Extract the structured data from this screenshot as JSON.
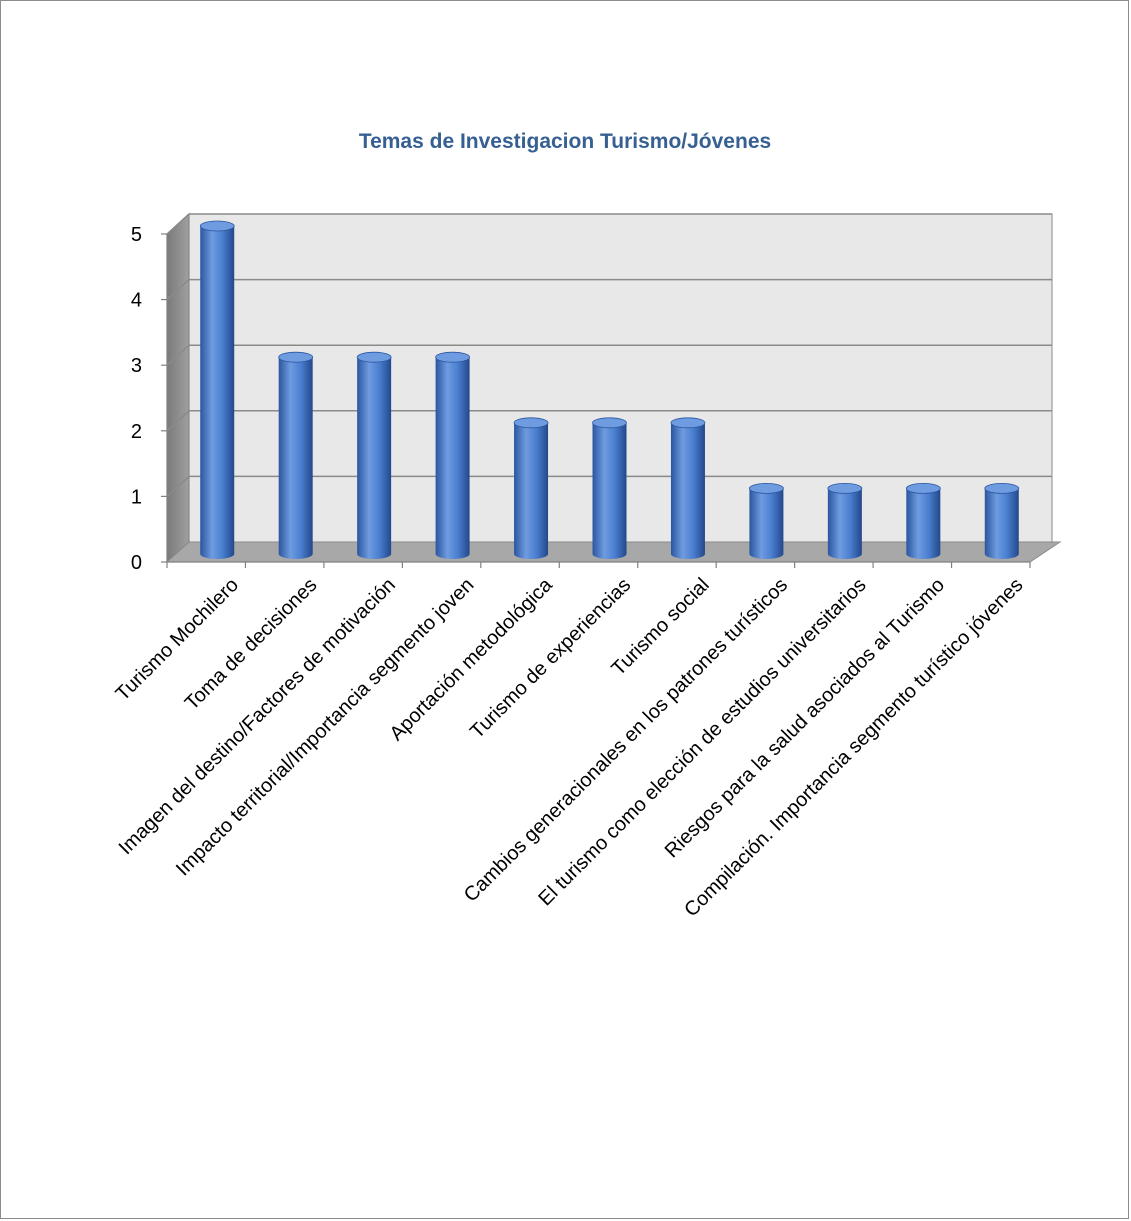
{
  "colors": {
    "title": "#376092",
    "bar_light": "#6f9be0",
    "bar_mid": "#3f74c8",
    "bar_dark": "#2a56a0",
    "wall": "#e8e8e8",
    "side_wall": "#909090",
    "floor": "#a8a8a8",
    "grid": "#8a8a8a"
  },
  "chart_data": {
    "type": "bar",
    "title": "Temas de Investigacion Turismo/Jóvenes",
    "xlabel": "",
    "ylabel": "",
    "ylim": [
      0,
      5
    ],
    "yticks": [
      0,
      1,
      2,
      3,
      4,
      5
    ],
    "grid": true,
    "legend": "none",
    "categories": [
      "Turismo Mochilero",
      "Toma de decisiones",
      "Imagen del destino/Factores de motivación",
      "Impacto territorial/Importancia segmento joven",
      "Aportación metodológica",
      "Turismo de experiencias",
      "Turismo social",
      "Cambios generacionales en los patrones turísticos",
      "El turismo como elección de estudios universitarios",
      "Riesgos para la salud asociados al Turismo",
      "Compilación. Importancia segmento turístico jóvenes"
    ],
    "values": [
      5,
      3,
      3,
      3,
      2,
      2,
      2,
      1,
      1,
      1,
      1
    ]
  }
}
